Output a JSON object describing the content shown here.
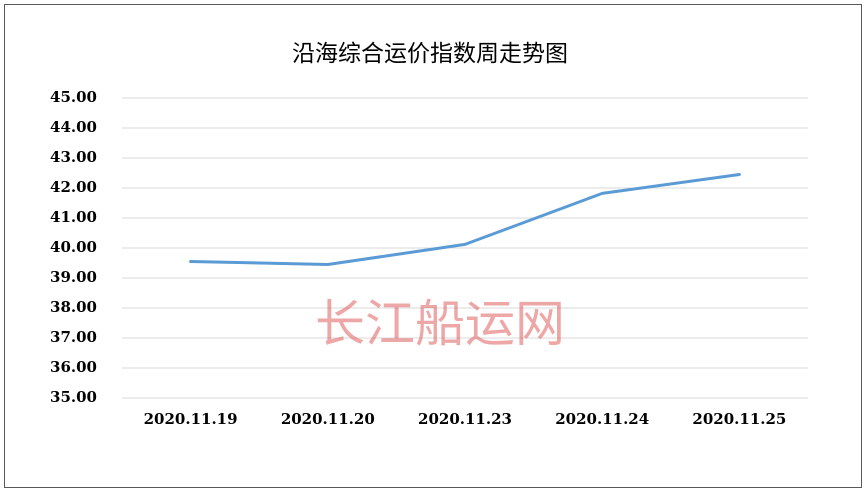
{
  "chart_data": {
    "type": "line",
    "title": "沿海综合运价指数周走势图",
    "categories": [
      "2020.11.19",
      "2020.11.20",
      "2020.11.23",
      "2020.11.24",
      "2020.11.25"
    ],
    "series": [
      {
        "name": "沿海综合运价指数",
        "color": "#5b9bd5",
        "values": [
          39.55,
          39.45,
          40.12,
          41.82,
          42.45
        ]
      }
    ],
    "ylim": [
      35,
      45
    ],
    "yticks": [
      {
        "value": 35,
        "label": "35.00"
      },
      {
        "value": 36,
        "label": "36.00"
      },
      {
        "value": 37,
        "label": "37.00"
      },
      {
        "value": 38,
        "label": "38.00"
      },
      {
        "value": 39,
        "label": "39.00"
      },
      {
        "value": 40,
        "label": "40.00"
      },
      {
        "value": 41,
        "label": "41.00"
      },
      {
        "value": 42,
        "label": "42.00"
      },
      {
        "value": 43,
        "label": "43.00"
      },
      {
        "value": 44,
        "label": "44.00"
      },
      {
        "value": 45,
        "label": "45.00"
      }
    ],
    "grid": true,
    "watermark": "长江船运网"
  }
}
